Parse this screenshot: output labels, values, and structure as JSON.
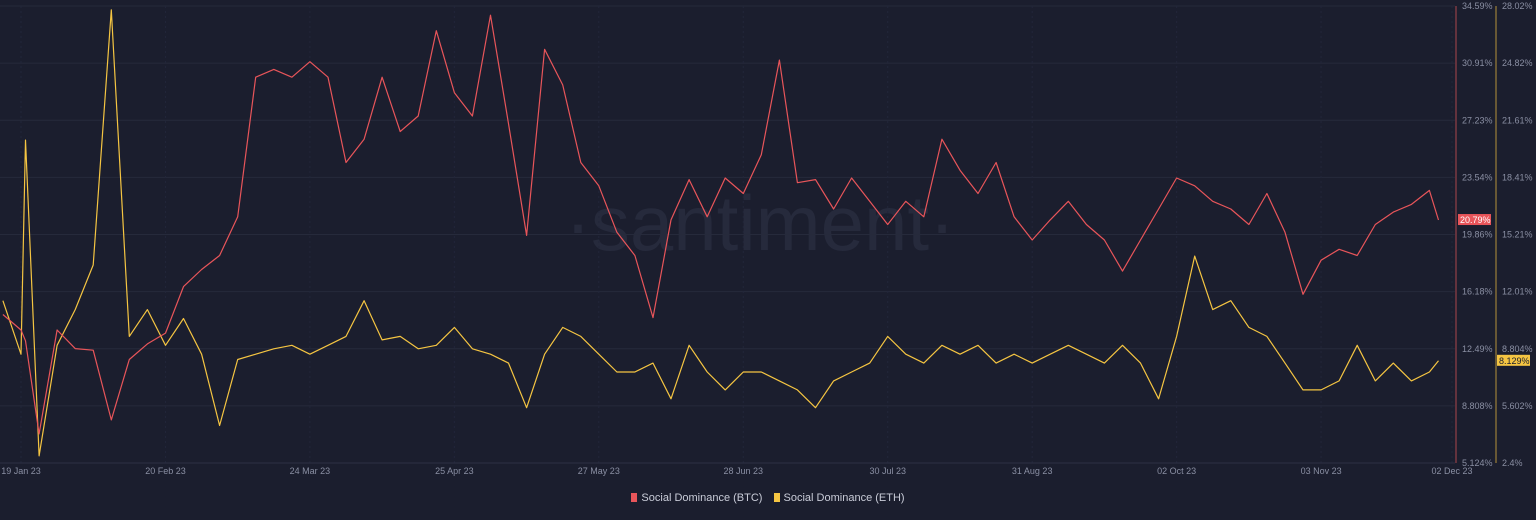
{
  "watermark": "·santiment·",
  "chart_data": {
    "type": "line",
    "xaxis": {
      "ticks": [
        "19 Jan 23",
        "20 Feb 23",
        "24 Mar 23",
        "25 Apr 23",
        "27 May 23",
        "28 Jun 23",
        "30 Jul 23",
        "31 Aug 23",
        "02 Oct 23",
        "03 Nov 23",
        "02 Dec 23"
      ],
      "tick_dates": [
        "2023-01-19",
        "2023-02-20",
        "2023-03-24",
        "2023-04-25",
        "2023-05-27",
        "2023-06-28",
        "2023-07-30",
        "2023-08-31",
        "2023-10-02",
        "2023-11-03",
        "2023-12-02"
      ],
      "range": [
        "2023-01-15",
        "2023-12-02"
      ]
    },
    "yaxis_btc": {
      "ticks": [
        "34.59%",
        "30.91%",
        "27.23%",
        "23.54%",
        "19.86%",
        "16.18%",
        "12.49%",
        "8.808%",
        "5.124%"
      ],
      "range": [
        5.124,
        34.59
      ],
      "color": "#e8555a"
    },
    "yaxis_eth": {
      "ticks": [
        "28.02%",
        "24.82%",
        "21.61%",
        "18.41%",
        "15.21%",
        "12.01%",
        "8.804%",
        "5.602%",
        "2.4%"
      ],
      "range": [
        2.4,
        28.02
      ],
      "color": "#f5c542"
    },
    "grid": true,
    "legend_placement": "bottom",
    "dates": [
      "2023-01-15",
      "2023-01-19",
      "2023-01-20",
      "2023-01-23",
      "2023-01-27",
      "2023-01-31",
      "2023-02-04",
      "2023-02-08",
      "2023-02-12",
      "2023-02-16",
      "2023-02-20",
      "2023-02-24",
      "2023-02-28",
      "2023-03-04",
      "2023-03-08",
      "2023-03-12",
      "2023-03-16",
      "2023-03-20",
      "2023-03-24",
      "2023-03-28",
      "2023-04-01",
      "2023-04-05",
      "2023-04-09",
      "2023-04-13",
      "2023-04-17",
      "2023-04-21",
      "2023-04-25",
      "2023-04-29",
      "2023-05-03",
      "2023-05-07",
      "2023-05-11",
      "2023-05-15",
      "2023-05-19",
      "2023-05-23",
      "2023-05-27",
      "2023-05-31",
      "2023-06-04",
      "2023-06-08",
      "2023-06-12",
      "2023-06-16",
      "2023-06-20",
      "2023-06-24",
      "2023-06-28",
      "2023-07-02",
      "2023-07-06",
      "2023-07-10",
      "2023-07-14",
      "2023-07-18",
      "2023-07-22",
      "2023-07-26",
      "2023-07-30",
      "2023-08-03",
      "2023-08-07",
      "2023-08-11",
      "2023-08-15",
      "2023-08-19",
      "2023-08-23",
      "2023-08-27",
      "2023-08-31",
      "2023-09-04",
      "2023-09-08",
      "2023-09-12",
      "2023-09-16",
      "2023-09-20",
      "2023-09-24",
      "2023-09-28",
      "2023-10-02",
      "2023-10-06",
      "2023-10-10",
      "2023-10-14",
      "2023-10-18",
      "2023-10-22",
      "2023-10-26",
      "2023-10-30",
      "2023-11-03",
      "2023-11-07",
      "2023-11-11",
      "2023-11-15",
      "2023-11-19",
      "2023-11-23",
      "2023-11-27",
      "2023-11-29"
    ],
    "series": [
      {
        "name": "Social Dominance (BTC)",
        "color": "#e8555a",
        "axis": "btc",
        "last_label": "20.79%",
        "values": [
          14.7,
          13.7,
          13.0,
          7.0,
          13.7,
          12.5,
          12.4,
          7.9,
          11.8,
          12.8,
          13.5,
          16.5,
          17.6,
          18.5,
          21.0,
          30.0,
          30.5,
          30.0,
          31.0,
          30.0,
          24.5,
          26.0,
          30.0,
          26.5,
          27.5,
          33.0,
          29.0,
          27.5,
          34.0,
          27.0,
          19.8,
          31.8,
          29.5,
          24.5,
          23.0,
          20.0,
          18.5,
          14.5,
          20.8,
          23.4,
          21.0,
          23.5,
          22.5,
          25.0,
          31.1,
          23.2,
          23.4,
          21.5,
          23.5,
          22.0,
          20.5,
          22.0,
          21.0,
          26.0,
          24.0,
          22.5,
          24.5,
          21.0,
          19.5,
          20.8,
          22.0,
          20.5,
          19.5,
          17.5,
          19.5,
          21.5,
          23.5,
          23.0,
          22.0,
          21.5,
          20.5,
          22.5,
          20.0,
          16.0,
          18.2,
          18.9,
          18.5,
          20.5,
          21.3,
          21.8,
          22.7,
          20.79
        ]
      },
      {
        "name": "Social Dominance (ETH)",
        "color": "#f5c542",
        "axis": "eth",
        "last_label": "8.129%",
        "values": [
          11.5,
          8.5,
          20.5,
          2.8,
          9.0,
          11.0,
          13.5,
          27.8,
          9.5,
          11.0,
          9.0,
          10.5,
          8.5,
          4.5,
          8.2,
          8.5,
          8.8,
          9.0,
          8.5,
          9.0,
          9.5,
          11.5,
          9.3,
          9.5,
          8.8,
          9.0,
          10.0,
          8.8,
          8.5,
          8.0,
          5.5,
          8.5,
          10.0,
          9.5,
          8.5,
          7.5,
          7.5,
          8.0,
          6.0,
          9.0,
          7.5,
          6.5,
          7.5,
          7.5,
          7.0,
          6.5,
          5.5,
          7.0,
          7.5,
          8.0,
          9.5,
          8.5,
          8.0,
          9.0,
          8.5,
          9.0,
          8.0,
          8.5,
          8.0,
          8.5,
          9.0,
          8.5,
          8.0,
          9.0,
          8.0,
          6.0,
          9.5,
          14.0,
          11.0,
          11.5,
          10.0,
          9.5,
          8.0,
          6.5,
          6.5,
          7.0,
          9.0,
          7.0,
          8.0,
          7.0,
          7.5,
          8.129
        ]
      }
    ]
  }
}
